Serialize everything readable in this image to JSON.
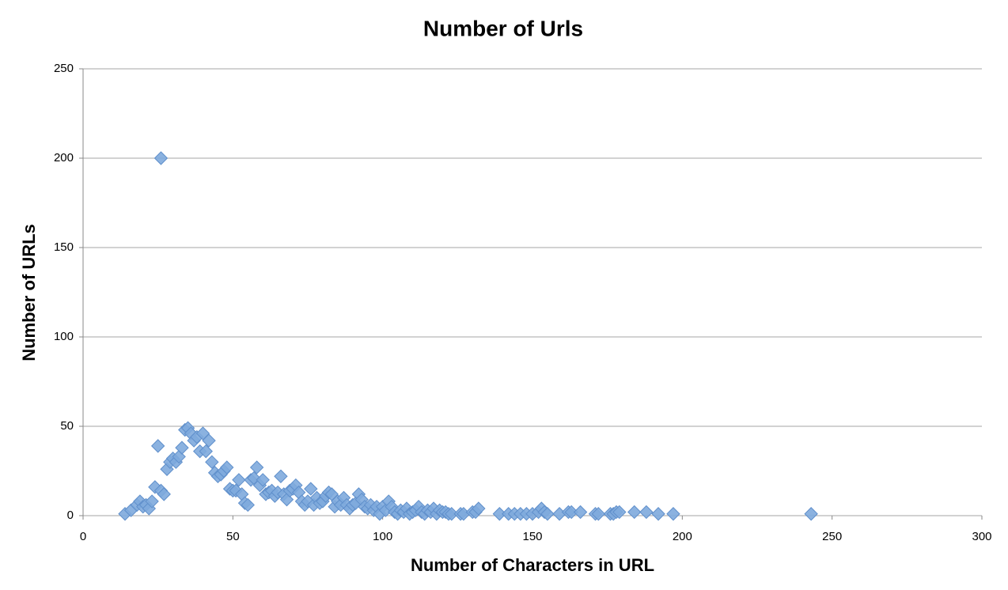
{
  "chart_data": {
    "type": "scatter",
    "title": "Number of Urls",
    "x_label": "Number of Characters in URL",
    "y_label": "Number of URLs",
    "x": [
      14,
      16,
      18,
      19,
      20,
      21,
      22,
      23,
      24,
      25,
      26,
      26,
      27,
      28,
      29,
      30,
      31,
      32,
      33,
      34,
      35,
      36,
      37,
      38,
      39,
      40,
      41,
      42,
      43,
      44,
      45,
      46,
      47,
      48,
      49,
      50,
      51,
      52,
      53,
      54,
      55,
      56,
      57,
      58,
      59,
      60,
      61,
      62,
      63,
      64,
      65,
      66,
      67,
      68,
      69,
      70,
      71,
      72,
      73,
      74,
      75,
      76,
      77,
      78,
      79,
      80,
      81,
      82,
      83,
      84,
      85,
      86,
      87,
      88,
      89,
      90,
      91,
      92,
      93,
      94,
      95,
      96,
      97,
      98,
      99,
      100,
      101,
      102,
      103,
      104,
      105,
      106,
      107,
      108,
      109,
      110,
      111,
      112,
      113,
      114,
      115,
      116,
      117,
      118,
      119,
      120,
      121,
      122,
      123,
      126,
      127,
      130,
      131,
      132,
      139,
      142,
      144,
      146,
      148,
      150,
      152,
      153,
      154,
      155,
      159,
      162,
      163,
      166,
      171,
      172,
      176,
      177,
      178,
      179,
      184,
      188,
      192,
      197,
      243
    ],
    "values": [
      1,
      3,
      6,
      8,
      5,
      6,
      4,
      8,
      16,
      39,
      200,
      14,
      12,
      26,
      30,
      32,
      30,
      33,
      38,
      48,
      49,
      46,
      42,
      44,
      36,
      46,
      36,
      42,
      30,
      24,
      22,
      23,
      25,
      27,
      15,
      14,
      14,
      20,
      12,
      7,
      6,
      20,
      21,
      27,
      17,
      20,
      12,
      13,
      14,
      11,
      13,
      22,
      12,
      9,
      14,
      15,
      17,
      13,
      8,
      6,
      8,
      15,
      6,
      10,
      7,
      8,
      11,
      13,
      12,
      5,
      8,
      6,
      10,
      6,
      4,
      6,
      7,
      12,
      9,
      5,
      4,
      6,
      3,
      5,
      1,
      5,
      3,
      8,
      5,
      2,
      1,
      3,
      2,
      4,
      1,
      2,
      3,
      5,
      2,
      1,
      3,
      2,
      4,
      1,
      3,
      2,
      2,
      1,
      1,
      1,
      1,
      2,
      2,
      4,
      1,
      1,
      1,
      1,
      1,
      1,
      2,
      4,
      2,
      1,
      1,
      2,
      2,
      2,
      1,
      1,
      1,
      1,
      2,
      2,
      2,
      2,
      1,
      1,
      1
    ],
    "color": "#7eaadd",
    "xlim": [
      0,
      300
    ],
    "xticks": [
      0,
      50,
      100,
      150,
      200,
      250,
      300
    ],
    "ylim": [
      0,
      250
    ],
    "yticks": [
      0,
      50,
      100,
      150,
      200,
      250
    ],
    "grid": true
  }
}
